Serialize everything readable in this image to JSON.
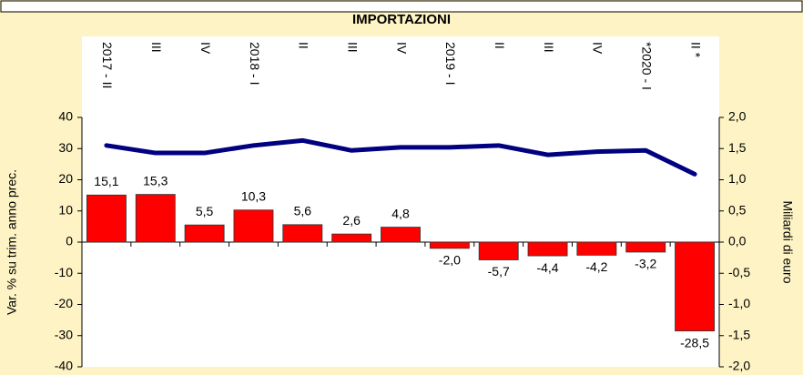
{
  "chart_data": {
    "type": "bar_line",
    "title": "IMPORTAZIONI",
    "y_label": "Var. % su trim. anno prec.",
    "y2_label": "Miliardi di euro",
    "categories": [
      "2017 - II",
      "III",
      "IV",
      "2018 - I",
      "II",
      "III",
      "IV",
      "2019 - I",
      "II",
      "III",
      "IV",
      "*2020 - I",
      "II *"
    ],
    "series": [
      {
        "type": "bar",
        "color": "#ff0000",
        "values": [
          15.1,
          15.3,
          5.5,
          10.3,
          5.6,
          2.6,
          4.8,
          -2.0,
          -5.7,
          -4.4,
          -4.2,
          -3.2,
          -28.5
        ],
        "value_labels": [
          "15,1",
          "15,3",
          "5,5",
          "10,3",
          "5,6",
          "2,6",
          "4,8",
          "-2,0",
          "-5,7",
          "-4,4",
          "-4,2",
          "-3,2",
          "-28,5"
        ]
      },
      {
        "type": "line",
        "axis": "y2",
        "color": "#000080",
        "values": [
          1.55,
          1.43,
          1.43,
          1.55,
          1.63,
          1.47,
          1.52,
          1.52,
          1.55,
          1.4,
          1.45,
          1.47,
          1.09
        ]
      }
    ],
    "ylim": [
      -40,
      40
    ],
    "yticks": [
      -40,
      -30,
      -20,
      -10,
      0,
      10,
      20,
      30,
      40
    ],
    "y2lim": [
      -2,
      2
    ],
    "y2ticks": [
      {
        "value": -2,
        "label": "-2,0"
      },
      {
        "value": -1.5,
        "label": "-1,5"
      },
      {
        "value": -1,
        "label": "-1,0"
      },
      {
        "value": -0.5,
        "label": "-0,5"
      },
      {
        "value": 0,
        "label": "0,0"
      },
      {
        "value": 0.5,
        "label": "0,5"
      },
      {
        "value": 1,
        "label": "1,0"
      },
      {
        "value": 1.5,
        "label": "1,5"
      },
      {
        "value": 2,
        "label": "2,0"
      }
    ]
  }
}
